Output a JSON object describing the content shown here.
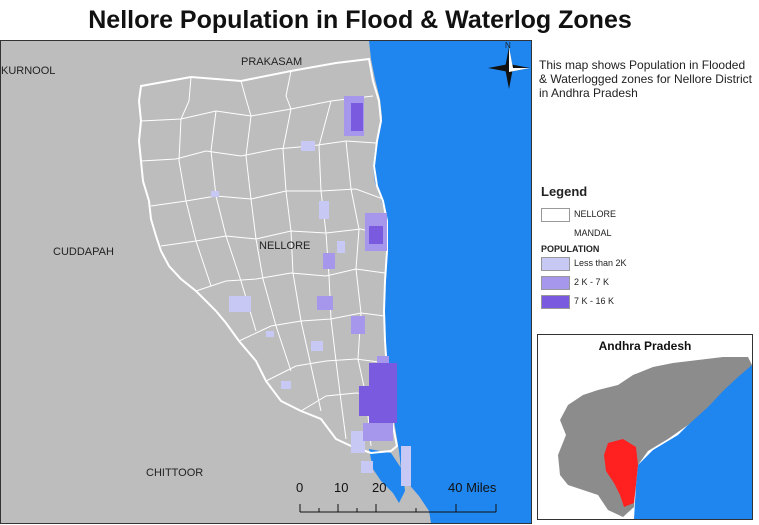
{
  "title": "Nellore Population in Flood & Waterlog Zones",
  "description": "This map shows Population in Flooded & Waterlogged zones for Nellore District in Andhra Pradesh",
  "map": {
    "place_labels": {
      "kurnool": "KURNOOL",
      "prakasam": "PRAKASAM",
      "cuddapah": "CUDDAPAH",
      "nellore": "NELLORE",
      "chittoor": "CHITTOOR"
    },
    "north_label": "N",
    "colors": {
      "land": "#bdbdbd",
      "sea": "#1f86f0",
      "boundary": "#ffffff"
    }
  },
  "legend": {
    "title": "Legend",
    "district_label": "NELLORE",
    "mandal_label": "MANDAL",
    "population_header": "POPULATION",
    "classes": [
      {
        "label": "Less than 2K",
        "color": "#c8c8f4"
      },
      {
        "label": "2 K - 7 K",
        "color": "#a696ec"
      },
      {
        "label": "7 K - 16 K",
        "color": "#7a5be0"
      }
    ]
  },
  "scale_bar": {
    "labels": [
      "0",
      "10",
      "20",
      "40 Miles"
    ],
    "unit": "Miles"
  },
  "inset": {
    "title": "Andhra Pradesh",
    "colors": {
      "state": "#8c8c8c",
      "highlight": "#ff2020",
      "sea": "#1f86f0",
      "land": "#ffffff"
    }
  }
}
